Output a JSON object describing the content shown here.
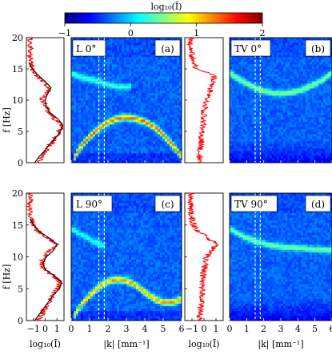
{
  "chart_data": {
    "type": "heatmap",
    "colorbar": {
      "title": "log₁₀(Ī)",
      "ticks": [
        "−1",
        "0",
        "1",
        "2"
      ],
      "range": [
        -1,
        2
      ],
      "colors": [
        "#00007f",
        "#0000ff",
        "#0080ff",
        "#00ffff",
        "#80ff80",
        "#ffff00",
        "#ff8000",
        "#ff0000",
        "#7f0000"
      ]
    },
    "shared_axes": {
      "ylabel": "f [Hz]",
      "yticks": [
        "0",
        "5",
        "10",
        "15",
        "20"
      ],
      "ylim": [
        0,
        20
      ],
      "kxlabel": "|k| [mm⁻¹]",
      "kticks": [
        "0",
        "1",
        "2",
        "3",
        "4",
        "5",
        "6"
      ],
      "klim": [
        0,
        6
      ],
      "sidexlabel": "log₁₀(Ī)",
      "sideticks": [
        "−1",
        "0",
        "1"
      ],
      "dashed_k": [
        1.5,
        1.8
      ]
    },
    "panels": [
      {
        "id": "a",
        "label": "(a)",
        "title": "L 0°",
        "bands": [
          {
            "name": "parabola",
            "points": [
              [
                0.1,
                0.5
              ],
              [
                0.5,
                2.5
              ],
              [
                1,
                4.2
              ],
              [
                1.5,
                5.5
              ],
              [
                2,
                6.5
              ],
              [
                2.5,
                7.1
              ],
              [
                3,
                7.3
              ],
              [
                3.5,
                7.1
              ],
              [
                4,
                6.6
              ],
              [
                4.5,
                5.8
              ],
              [
                5,
                4.5
              ],
              [
                5.5,
                2.9
              ],
              [
                6,
                1
              ]
            ],
            "strength": 2.0
          },
          {
            "name": "upper",
            "points": [
              [
                0,
                14.3
              ],
              [
                0.5,
                13.8
              ],
              [
                1,
                13.4
              ],
              [
                1.5,
                13.0
              ],
              [
                2,
                12.6
              ],
              [
                2.5,
                12.2
              ],
              [
                3,
                12.1
              ],
              [
                3.3,
                12.3
              ]
            ],
            "strength": 0.8
          }
        ],
        "spectrum": [
          [
            -0.6,
            0
          ],
          [
            -0.3,
            1
          ],
          [
            0.2,
            2
          ],
          [
            0.5,
            3
          ],
          [
            0.9,
            4
          ],
          [
            1.2,
            5
          ],
          [
            1.4,
            6
          ],
          [
            0.8,
            7
          ],
          [
            0.3,
            8
          ],
          [
            0.2,
            9
          ],
          [
            -0.3,
            10
          ],
          [
            0.1,
            11
          ],
          [
            0.4,
            12
          ],
          [
            -0.2,
            13
          ],
          [
            -0.8,
            14
          ],
          [
            -1.1,
            15
          ],
          [
            -1.2,
            16
          ],
          [
            -1.3,
            17
          ],
          [
            -1.3,
            18
          ],
          [
            -1.3,
            19
          ],
          [
            -1.3,
            20
          ]
        ],
        "fit": [
          [
            -0.9,
            0
          ],
          [
            -0.5,
            1
          ],
          [
            0,
            2
          ],
          [
            0.4,
            3
          ],
          [
            0.9,
            4
          ],
          [
            1.3,
            5
          ],
          [
            1.5,
            6
          ],
          [
            1.1,
            7
          ],
          [
            0.4,
            8
          ],
          [
            0.1,
            9
          ],
          [
            0,
            10
          ],
          [
            0.2,
            11
          ],
          [
            0.5,
            12
          ],
          [
            0,
            13
          ],
          [
            -0.6,
            14
          ],
          [
            -1.1,
            15
          ],
          [
            -1.4,
            16
          ]
        ]
      },
      {
        "id": "b",
        "label": "(b)",
        "title": "TV 0°",
        "bands": [
          {
            "name": "arc",
            "points": [
              [
                0,
                14.4
              ],
              [
                0.5,
                13.5
              ],
              [
                1,
                12.7
              ],
              [
                1.5,
                12.0
              ],
              [
                2,
                11.5
              ],
              [
                2.5,
                11.2
              ],
              [
                3,
                11.1
              ],
              [
                3.5,
                11.2
              ],
              [
                4,
                11.5
              ],
              [
                4.5,
                12.0
              ],
              [
                5,
                12.6
              ],
              [
                5.5,
                13.4
              ],
              [
                6,
                14.4
              ]
            ],
            "strength": 1.1
          }
        ],
        "spectrum": [
          [
            -0.4,
            0
          ],
          [
            -0.3,
            2
          ],
          [
            -0.2,
            4
          ],
          [
            -0.1,
            6
          ],
          [
            0,
            8
          ],
          [
            0.2,
            10
          ],
          [
            0.4,
            11
          ],
          [
            0.6,
            12
          ],
          [
            0.9,
            14
          ],
          [
            -0.6,
            15
          ],
          [
            -0.9,
            16
          ],
          [
            -1.0,
            17
          ],
          [
            -1.1,
            18
          ],
          [
            -1.1,
            19
          ],
          [
            -1.1,
            20
          ]
        ]
      },
      {
        "id": "c",
        "label": "(c)",
        "title": "L 90°",
        "bands": [
          {
            "name": "wave",
            "points": [
              [
                0.1,
                0.5
              ],
              [
                0.5,
                2.3
              ],
              [
                1,
                4
              ],
              [
                1.5,
                5.3
              ],
              [
                2,
                6.2
              ],
              [
                2.5,
                6.5
              ],
              [
                3,
                6.3
              ],
              [
                3.5,
                5.6
              ],
              [
                4,
                4.5
              ],
              [
                4.5,
                3.5
              ],
              [
                5,
                2.9
              ],
              [
                5.5,
                2.9
              ],
              [
                6,
                3.4
              ]
            ],
            "strength": 1.8
          },
          {
            "name": "upper",
            "points": [
              [
                0,
                14.5
              ],
              [
                0.5,
                13.6
              ],
              [
                1,
                12.8
              ],
              [
                1.5,
                12.1
              ],
              [
                1.8,
                11.8
              ]
            ],
            "strength": 0.7
          }
        ],
        "spectrum": [
          [
            -0.6,
            0
          ],
          [
            -0.3,
            1
          ],
          [
            0,
            2
          ],
          [
            0.3,
            3
          ],
          [
            0.6,
            4
          ],
          [
            1.0,
            5
          ],
          [
            1.3,
            6
          ],
          [
            0.7,
            7
          ],
          [
            0,
            8
          ],
          [
            -0.3,
            9
          ],
          [
            -0.1,
            10
          ],
          [
            0.4,
            11
          ],
          [
            0.9,
            12
          ],
          [
            0.2,
            13
          ],
          [
            -0.6,
            14
          ],
          [
            -1.0,
            15
          ],
          [
            -1.2,
            16
          ],
          [
            -1.3,
            17
          ],
          [
            -1.3,
            18
          ],
          [
            -1.3,
            19
          ],
          [
            -1.3,
            20
          ]
        ],
        "fit": [
          [
            -0.9,
            0
          ],
          [
            -0.5,
            1
          ],
          [
            -0.1,
            2
          ],
          [
            0.3,
            3
          ],
          [
            0.7,
            4
          ],
          [
            1.2,
            5
          ],
          [
            1.4,
            6
          ],
          [
            0.8,
            7
          ],
          [
            0,
            8
          ],
          [
            -0.2,
            9
          ],
          [
            0.1,
            10
          ],
          [
            0.7,
            11
          ],
          [
            1.0,
            12
          ],
          [
            0.3,
            13
          ],
          [
            -0.5,
            14
          ],
          [
            -1.0,
            15
          ],
          [
            -1.3,
            16
          ]
        ]
      },
      {
        "id": "d",
        "label": "(d)",
        "title": "TV 90°",
        "bands": [
          {
            "name": "decline",
            "points": [
              [
                0,
                14.5
              ],
              [
                0.5,
                13.7
              ],
              [
                1,
                13.0
              ],
              [
                1.5,
                12.5
              ],
              [
                2,
                12.1
              ],
              [
                2.5,
                11.8
              ],
              [
                3,
                11.6
              ],
              [
                4,
                11.4
              ],
              [
                5,
                11.2
              ],
              [
                6,
                11.1
              ]
            ],
            "strength": 1.0
          }
        ],
        "spectrum": [
          [
            -0.4,
            0
          ],
          [
            -0.3,
            2
          ],
          [
            -0.2,
            4
          ],
          [
            -0.1,
            6
          ],
          [
            0,
            8
          ],
          [
            0.2,
            10
          ],
          [
            0.6,
            11
          ],
          [
            1.0,
            12
          ],
          [
            0.3,
            13
          ],
          [
            -0.5,
            14
          ],
          [
            -0.9,
            15
          ],
          [
            -1.0,
            16
          ],
          [
            -1.1,
            17
          ],
          [
            -1.1,
            18
          ],
          [
            -1.1,
            19
          ],
          [
            -1.1,
            20
          ]
        ]
      }
    ]
  }
}
